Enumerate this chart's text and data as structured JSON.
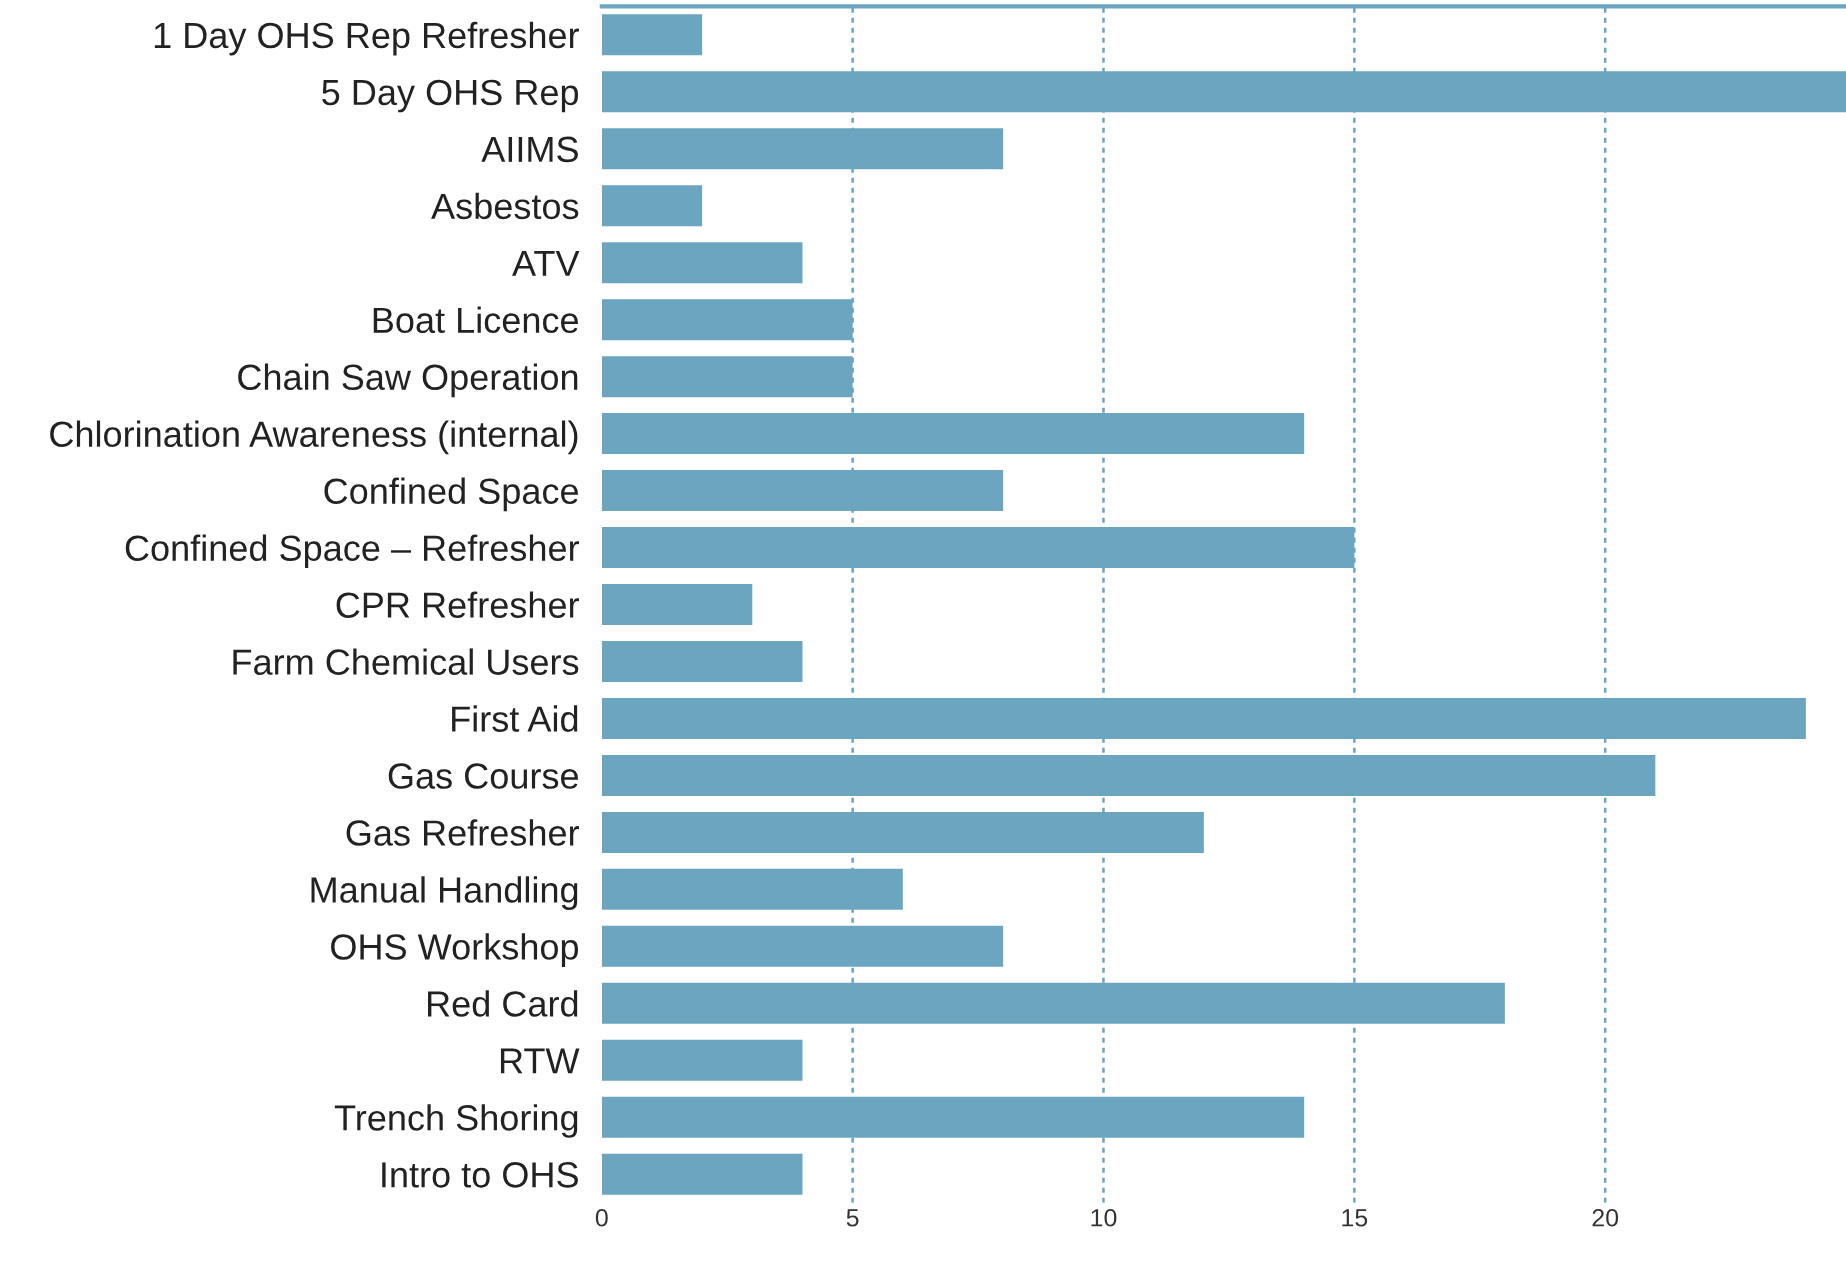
{
  "chart_data": {
    "type": "bar",
    "orientation": "horizontal",
    "categories": [
      "1 Day OHS Rep Refresher",
      "5 Day OHS Rep",
      "AIIMS",
      "Asbestos",
      "ATV",
      "Boat Licence",
      "Chain Saw Operation",
      "Chlorination Awareness (internal)",
      "Confined Space",
      "Confined Space – Refresher",
      "CPR Refresher",
      "Farm Chemical Users",
      "First Aid",
      "Gas Course",
      "Gas Refresher",
      "Manual Handling",
      "OHS Workshop",
      "Red Card",
      "RTW",
      "Trench Shoring",
      "Intro to OHS"
    ],
    "values": [
      2,
      24.8,
      8,
      2,
      4,
      5,
      5,
      14,
      8,
      15,
      3,
      4,
      24,
      21,
      12,
      6,
      8,
      18,
      4,
      14,
      4
    ],
    "color": "#6ba5c0",
    "xlim": [
      0,
      24.8
    ],
    "xticks": [
      0,
      5,
      10,
      15,
      20
    ],
    "grid": "x"
  }
}
